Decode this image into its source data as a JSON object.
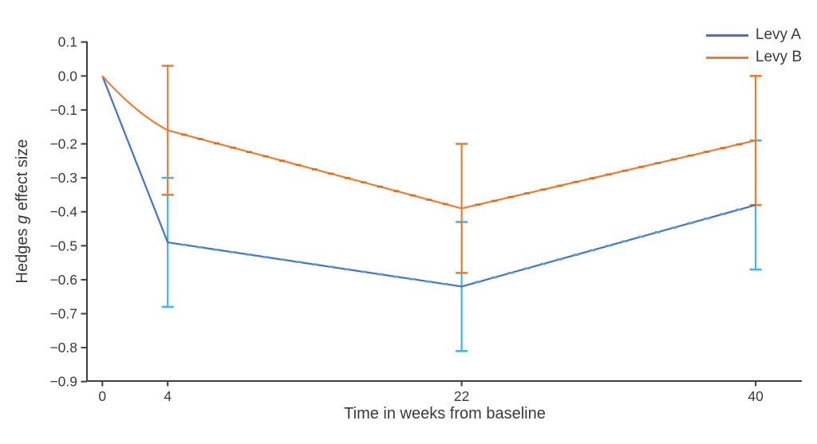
{
  "figure": {
    "background": "#ffffff",
    "axis_color": "#3f3f3f",
    "text_color": "#3a3a3a"
  },
  "chart_data": {
    "type": "line",
    "title": "",
    "xlabel": "Time in weeks from baseline",
    "ylabel": {
      "prefix": "Hedges ",
      "italic": "g",
      "suffix": " effect size"
    },
    "xlim": [
      0,
      40
    ],
    "ylim": [
      -0.9,
      0.1
    ],
    "grid": "off",
    "legend_position": "top-right",
    "x_ticks": [
      {
        "week": 0,
        "label": "0"
      },
      {
        "week": 4,
        "label": "4"
      },
      {
        "week": 22,
        "label": "22"
      },
      {
        "week": 40,
        "label": "40"
      }
    ],
    "y_ticks": [
      {
        "value": 0.1,
        "label": "0.1"
      },
      {
        "value": 0.0,
        "label": "0.0"
      },
      {
        "value": -0.1,
        "label": "−0.1"
      },
      {
        "value": -0.2,
        "label": "−0.2"
      },
      {
        "value": -0.3,
        "label": "−0.3"
      },
      {
        "value": -0.4,
        "label": "−0.4"
      },
      {
        "value": -0.5,
        "label": "−0.5"
      },
      {
        "value": -0.6,
        "label": "−0.6"
      },
      {
        "value": -0.7,
        "label": "−0.7"
      },
      {
        "value": -0.8,
        "label": "−0.8"
      },
      {
        "value": -0.9,
        "label": "−0.9"
      }
    ],
    "series": [
      {
        "name": "Levy A",
        "color": "#4472C4",
        "marker_color": "#5B9BD5",
        "error_color": "#41B6E6",
        "x": [
          0,
          4,
          22,
          40
        ],
        "y": [
          0.0,
          -0.49,
          -0.62,
          -0.38
        ],
        "error_bars": [
          {
            "x": 4,
            "high": -0.3,
            "low": -0.68
          },
          {
            "x": 22,
            "high": -0.43,
            "low": -0.81
          },
          {
            "x": 40,
            "high": -0.19,
            "low": -0.57
          }
        ]
      },
      {
        "name": "Levy B",
        "color": "#ED7D31",
        "marker_color": "#E26B15",
        "error_color": "#ED7D31",
        "x": [
          0,
          4,
          22,
          40
        ],
        "y": [
          0.0,
          -0.16,
          -0.39,
          -0.19
        ],
        "error_bars": [
          {
            "x": 4,
            "high": 0.03,
            "low": -0.35
          },
          {
            "x": 22,
            "high": -0.2,
            "low": -0.58
          },
          {
            "x": 40,
            "high": 0.0,
            "low": -0.38
          }
        ]
      }
    ]
  }
}
